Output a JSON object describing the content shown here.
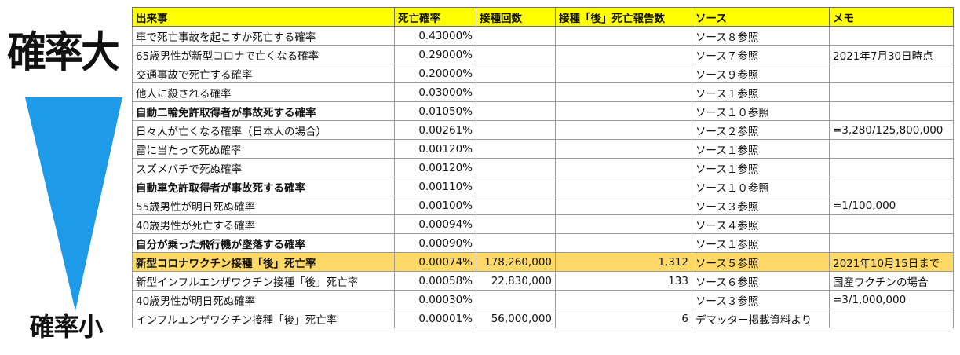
{
  "left_labels": {
    "top": "確率大",
    "bottom": "確率小"
  },
  "colors": {
    "header_bg": "#ffff00",
    "highlight_bg": "#ffd966",
    "triangle": "#1e9be8"
  },
  "headers": [
    "出来事",
    "死亡確率",
    "接種回数",
    "接種「後」死亡報告数",
    "ソース",
    "メモ"
  ],
  "rows": [
    {
      "event": "車で死亡事故を起こすか死亡する確率",
      "prob": "0.43000%",
      "doses": "",
      "deaths": "",
      "source": "ソース８参照",
      "memo": "",
      "bold": false,
      "highlight": false
    },
    {
      "event": "65歳男性が新型コロナで亡くなる確率",
      "prob": "0.29000%",
      "doses": "",
      "deaths": "",
      "source": "ソース７参照",
      "memo": "2021年7月30日時点",
      "bold": false,
      "highlight": false
    },
    {
      "event": "交通事故で死亡する確率",
      "prob": "0.20000%",
      "doses": "",
      "deaths": "",
      "source": "ソース９参照",
      "memo": "",
      "bold": false,
      "highlight": false
    },
    {
      "event": "他人に殺される確率",
      "prob": "0.03000%",
      "doses": "",
      "deaths": "",
      "source": "ソース１参照",
      "memo": "",
      "bold": false,
      "highlight": false
    },
    {
      "event": "自動二輪免許取得者が事故死する確率",
      "prob": "0.01050%",
      "doses": "",
      "deaths": "",
      "source": "ソース１０参照",
      "memo": "",
      "bold": true,
      "highlight": false
    },
    {
      "event": "日々人が亡くなる確率（日本人の場合）",
      "prob": "0.00261%",
      "doses": "",
      "deaths": "",
      "source": "ソース２参照",
      "memo": "=3,280/125,800,000",
      "bold": false,
      "highlight": false
    },
    {
      "event": "雷に当たって死ぬ確率",
      "prob": "0.00120%",
      "doses": "",
      "deaths": "",
      "source": "ソース１参照",
      "memo": "",
      "bold": false,
      "highlight": false
    },
    {
      "event": "スズメバチで死ぬ確率",
      "prob": "0.00120%",
      "doses": "",
      "deaths": "",
      "source": "ソース１参照",
      "memo": "",
      "bold": false,
      "highlight": false
    },
    {
      "event": "自動車免許取得者が事故死する確率",
      "prob": "0.00110%",
      "doses": "",
      "deaths": "",
      "source": "ソース１０参照",
      "memo": "",
      "bold": true,
      "highlight": false
    },
    {
      "event": "55歳男性が明日死ぬ確率",
      "prob": "0.00100%",
      "doses": "",
      "deaths": "",
      "source": "ソース３参照",
      "memo": "=1/100,000",
      "bold": false,
      "highlight": false
    },
    {
      "event": "40歳男性が死亡する確率",
      "prob": "0.00094%",
      "doses": "",
      "deaths": "",
      "source": "ソース４参照",
      "memo": "",
      "bold": false,
      "highlight": false
    },
    {
      "event": "自分が乗った飛行機が墜落する確率",
      "prob": "0.00090%",
      "doses": "",
      "deaths": "",
      "source": "ソース１参照",
      "memo": "",
      "bold": true,
      "highlight": false
    },
    {
      "event": "新型コロナワクチン接種「後」死亡率",
      "prob": "0.00074%",
      "doses": "178,260,000",
      "deaths": "1,312",
      "source": "ソース５参照",
      "memo": "2021年10月15日まで",
      "bold": true,
      "highlight": true
    },
    {
      "event": "新型インフルエンザワクチン接種「後」死亡率",
      "prob": "0.00058%",
      "doses": "22,830,000",
      "deaths": "133",
      "source": "ソース６参照",
      "memo": "国産ワクチンの場合",
      "bold": false,
      "highlight": false
    },
    {
      "event": "40歳男性が明日死ぬ確率",
      "prob": "0.00030%",
      "doses": "",
      "deaths": "",
      "source": "ソース３参照",
      "memo": "=3/1,000,000",
      "bold": false,
      "highlight": false
    },
    {
      "event": "インフルエンザワクチン接種「後」死亡率",
      "prob": "0.00001%",
      "doses": "56,000,000",
      "deaths": "6",
      "source": "デマッター掲載資料より",
      "memo": "",
      "bold": false,
      "highlight": false
    }
  ]
}
